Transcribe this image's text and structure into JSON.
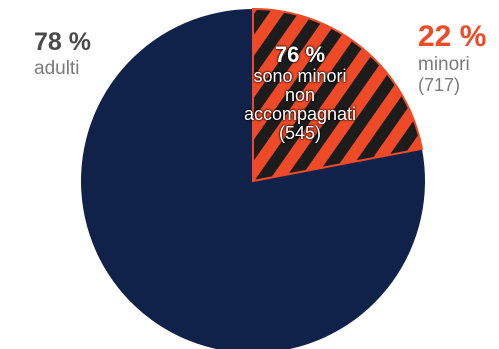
{
  "colors": {
    "adulti": "#10224a",
    "minori": "#ef4a27",
    "stripe": "#1c1c1c",
    "pct_grey": "#4a4a4a",
    "text_grey": "#7a7a7a"
  },
  "chart_data": {
    "type": "pie",
    "slices": [
      {
        "label": "adulti",
        "percent": 78
      },
      {
        "label": "minori",
        "percent": 22,
        "count": 717
      }
    ],
    "subset": {
      "label": "sono minori non accompagnati",
      "percent": 76,
      "count": 545,
      "of": "minori",
      "pattern": "diagonal stripes"
    },
    "start_angle": "12 o'clock",
    "direction": "clockwise, minori first"
  },
  "labels": {
    "adulti_pct": "78 %",
    "adulti_name": "adulti",
    "minori_pct": "22 %",
    "minori_name": "minori",
    "minori_count": "(717)",
    "inner_pct": "76 %",
    "inner_line1": "sono minori",
    "inner_line2": "non",
    "inner_line3": "accompagnati",
    "inner_count": "(545)"
  }
}
